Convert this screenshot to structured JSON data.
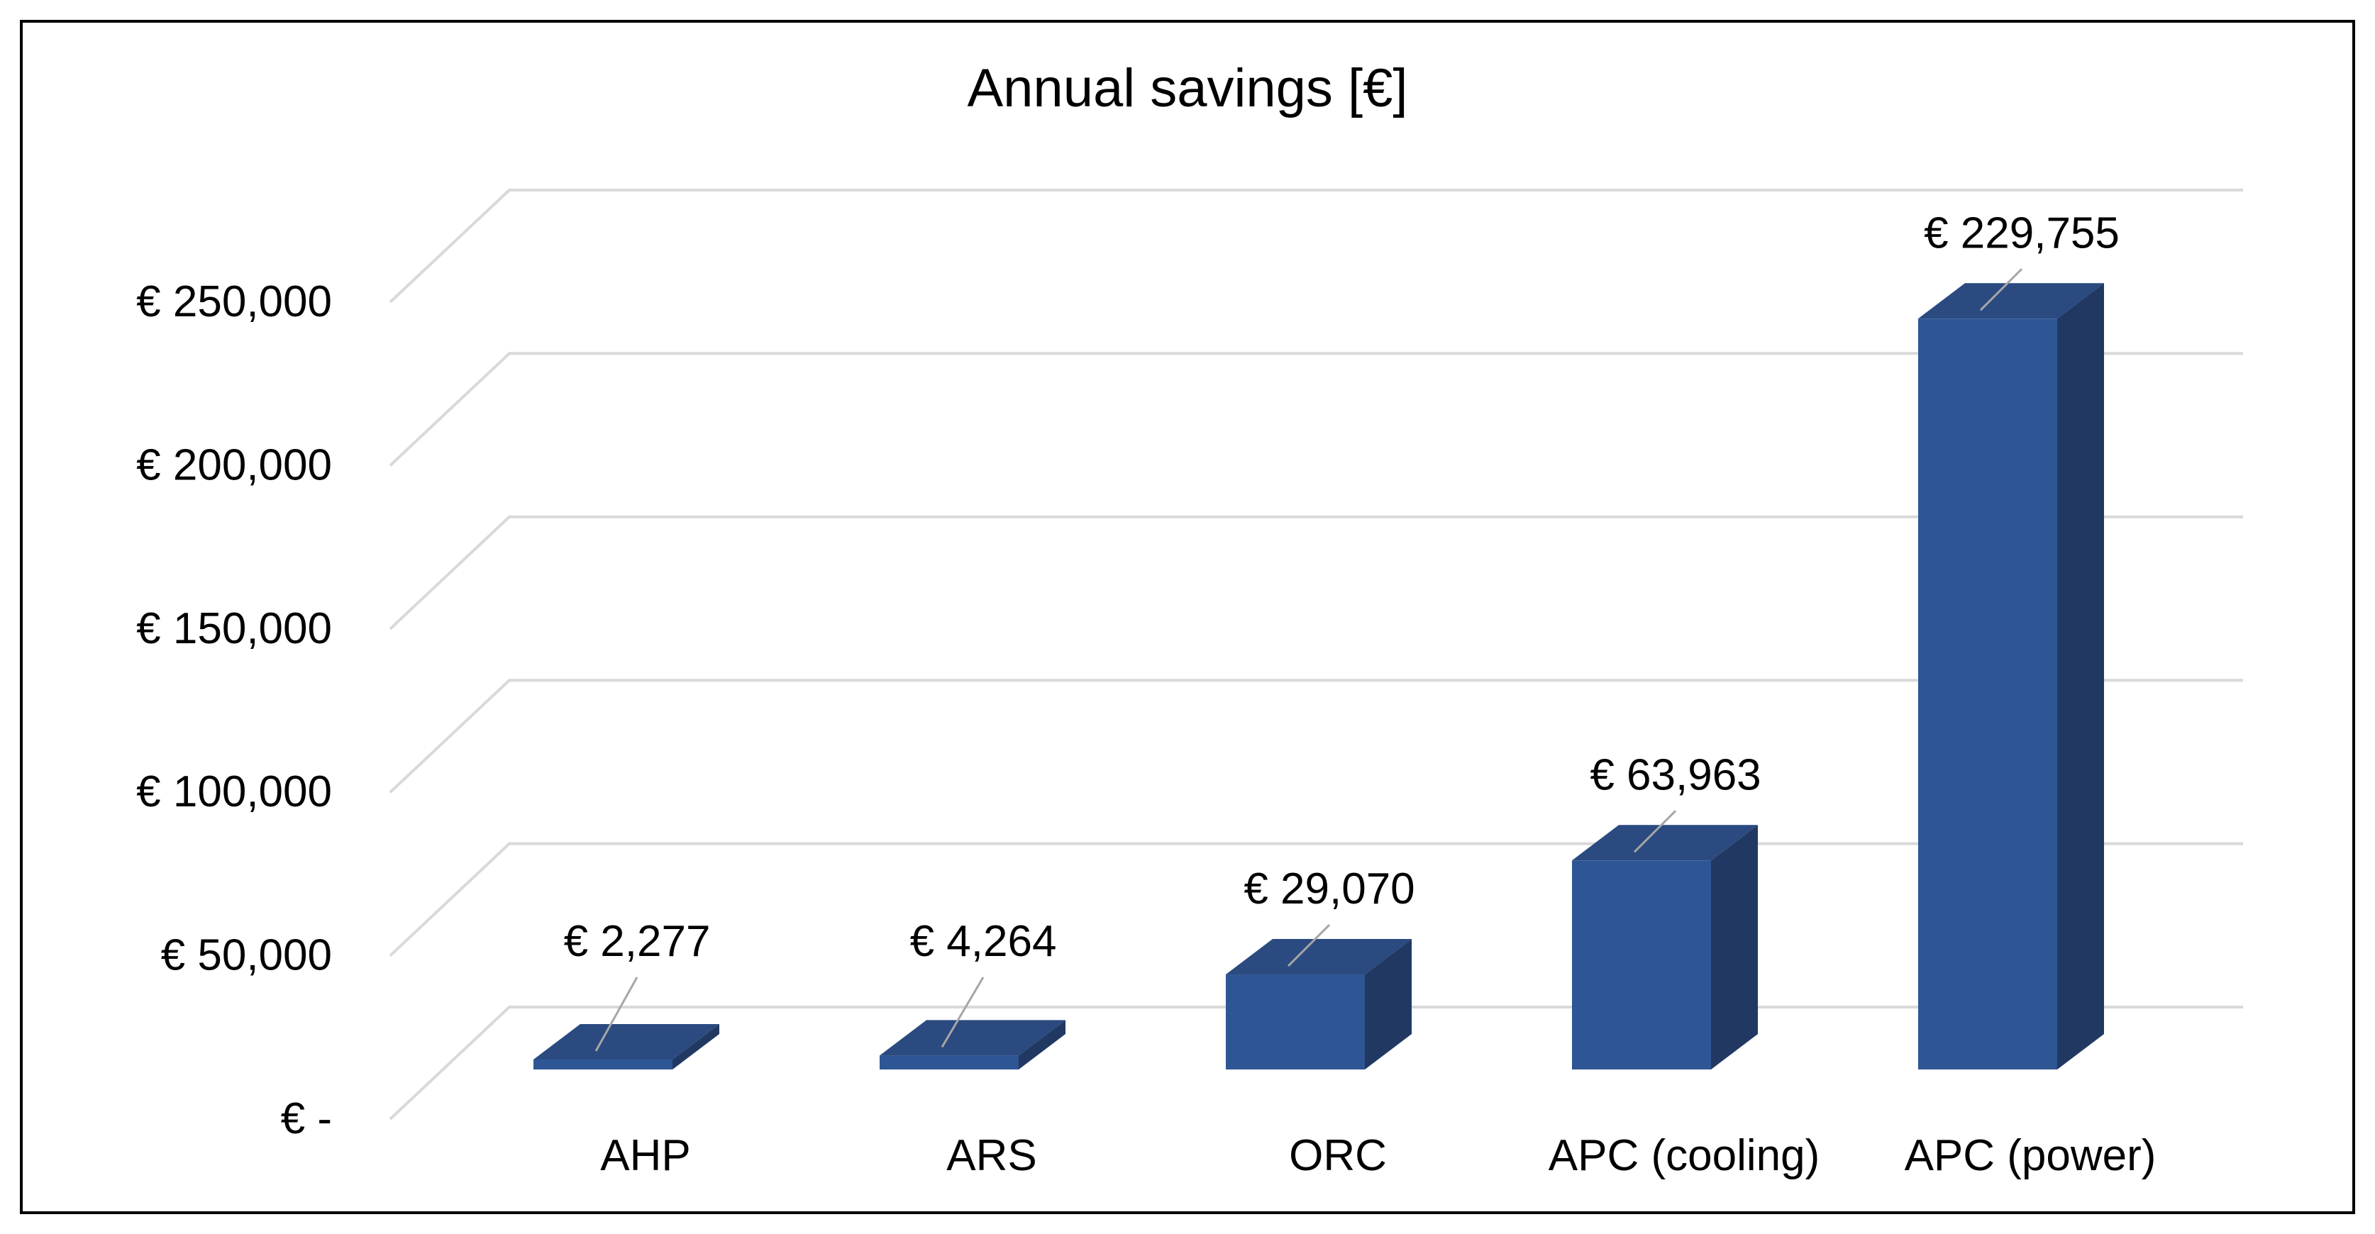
{
  "chart_data": {
    "type": "bar",
    "style": "3d-column",
    "title": "Annual savings [€]",
    "xlabel": "",
    "ylabel": "",
    "ylim": [
      0,
      250000
    ],
    "yticks": [
      {
        "value": 0,
        "label": "€ -"
      },
      {
        "value": 50000,
        "label": "€ 50,000"
      },
      {
        "value": 100000,
        "label": "€ 100,000"
      },
      {
        "value": 150000,
        "label": "€ 150,000"
      },
      {
        "value": 200000,
        "label": "€ 200,000"
      },
      {
        "value": 250000,
        "label": "€ 250,000"
      }
    ],
    "categories": [
      "AHP",
      "ARS",
      "ORC",
      "APC (cooling)",
      "APC (power)"
    ],
    "values": [
      2277,
      4264,
      29070,
      63963,
      229755
    ],
    "data_labels": [
      "€ 2,277",
      "€ 4,264",
      "€ 29,070",
      "€ 63,963",
      "€ 229,755"
    ],
    "grid": true,
    "legend": "none"
  },
  "colors": {
    "bar_front": "#2e5694",
    "bar_side": "#213962",
    "bar_top": "#2a4a80",
    "grid": "#d9d9d9",
    "frame": "#000000",
    "leader": "#a6a6a6"
  }
}
